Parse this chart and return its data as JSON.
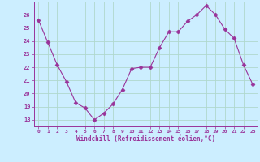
{
  "x": [
    0,
    1,
    2,
    3,
    4,
    5,
    6,
    7,
    8,
    9,
    10,
    11,
    12,
    13,
    14,
    15,
    16,
    17,
    18,
    19,
    20,
    21,
    22,
    23
  ],
  "y": [
    25.6,
    23.9,
    22.2,
    20.9,
    19.3,
    18.9,
    18.0,
    18.5,
    19.2,
    20.3,
    21.9,
    22.0,
    22.0,
    23.5,
    24.7,
    24.7,
    25.5,
    26.0,
    26.7,
    26.0,
    24.9,
    24.2,
    22.2,
    20.7
  ],
  "line_color": "#993399",
  "marker": "D",
  "marker_size": 2.5,
  "bg_color": "#cceeff",
  "grid_color": "#aaddcc",
  "xlabel": "Windchill (Refroidissement éolien,°C)",
  "xlabel_color": "#993399",
  "tick_color": "#993399",
  "ylabel_ticks": [
    18,
    19,
    20,
    21,
    22,
    23,
    24,
    25,
    26
  ],
  "xlim": [
    -0.5,
    23.5
  ],
  "ylim": [
    17.5,
    27.0
  ]
}
